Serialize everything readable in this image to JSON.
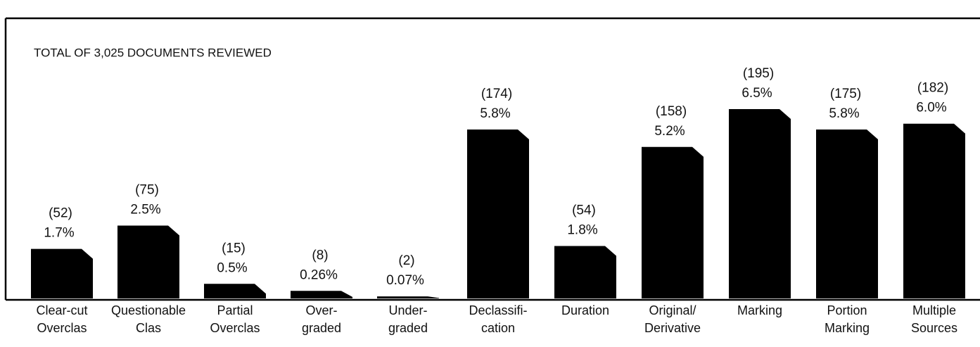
{
  "chart_data": {
    "type": "bar",
    "title": "TOTAL OF 3,025 DOCUMENTS REVIEWED",
    "categories": [
      [
        "Clear-cut",
        "Overclas"
      ],
      [
        "Questionable",
        "Clas"
      ],
      [
        "Partial",
        "Overclas"
      ],
      [
        "Over-",
        "graded"
      ],
      [
        "Under-",
        "graded"
      ],
      [
        "Declassifi-",
        "cation"
      ],
      [
        "Duration"
      ],
      [
        "Original/",
        "Derivative"
      ],
      [
        "Marking"
      ],
      [
        "Portion",
        "Marking"
      ],
      [
        "Multiple",
        "Sources"
      ]
    ],
    "values": [
      1.7,
      2.5,
      0.5,
      0.26,
      0.07,
      5.8,
      1.8,
      5.2,
      6.5,
      5.8,
      6.0
    ],
    "value_labels": [
      "1.7%",
      "2.5%",
      "0.5%",
      "0.26%",
      "0.07%",
      "5.8%",
      "1.8%",
      "5.2%",
      "6.5%",
      "5.8%",
      "6.0%"
    ],
    "counts": [
      52,
      75,
      15,
      8,
      2,
      174,
      54,
      158,
      195,
      175,
      182
    ],
    "count_labels": [
      "(52)",
      "(75)",
      "(15)",
      "(8)",
      "(2)",
      "(174)",
      "(54)",
      "(158)",
      "(195)",
      "(175)",
      "(182)"
    ],
    "color": "#000000"
  }
}
